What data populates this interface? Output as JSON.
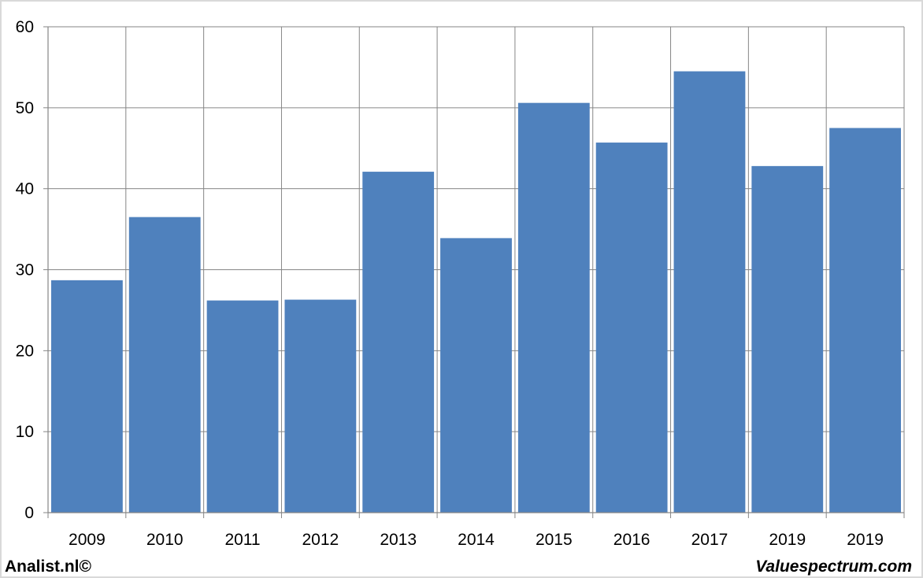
{
  "chart_data": {
    "type": "bar",
    "categories": [
      "2009",
      "2010",
      "2011",
      "2012",
      "2013",
      "2014",
      "2015",
      "2016",
      "2017",
      "2019",
      "2019"
    ],
    "values": [
      28.7,
      36.5,
      26.2,
      26.3,
      42.1,
      33.9,
      50.6,
      45.7,
      54.5,
      42.8,
      47.5
    ],
    "ylim": [
      0,
      60
    ],
    "yticks": [
      0,
      10,
      20,
      30,
      40,
      50,
      60
    ],
    "grid": true,
    "bar_color": "#4f81bd",
    "grid_color": "#868686"
  },
  "footer": {
    "left": "Analist.nl©",
    "right": "Valuespectrum.com"
  }
}
